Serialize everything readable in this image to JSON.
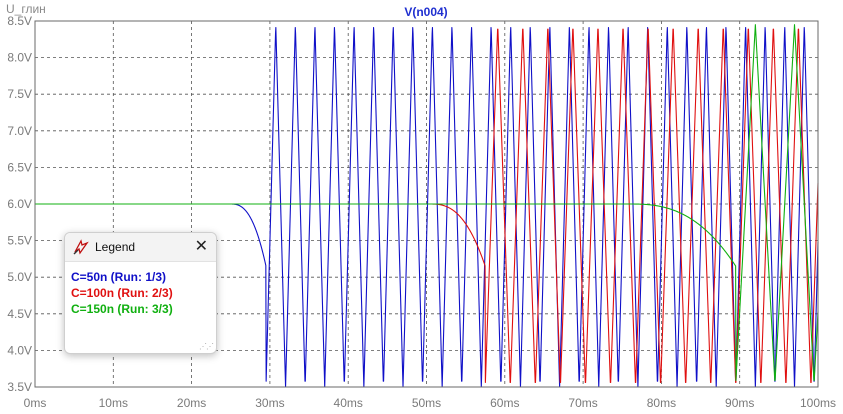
{
  "header": {
    "left_label": "U_глин",
    "title": "V(n004)"
  },
  "legend": {
    "title": "Legend",
    "entries": [
      {
        "text": "C=50n  (Run: 1/3)",
        "color": "#1010c8"
      },
      {
        "text": "C=100n  (Run: 2/3)",
        "color": "#e01010"
      },
      {
        "text": "C=150n  (Run: 3/3)",
        "color": "#10b010"
      }
    ]
  },
  "chart_data": {
    "type": "line",
    "title": "V(n004)",
    "xlabel": "",
    "ylabel": "",
    "xlim": [
      0,
      100
    ],
    "ylim": [
      3.5,
      8.5
    ],
    "x_unit": "ms",
    "y_unit": "V",
    "x_ticks": [
      "0ms",
      "10ms",
      "20ms",
      "30ms",
      "40ms",
      "50ms",
      "60ms",
      "70ms",
      "80ms",
      "90ms",
      "100ms"
    ],
    "y_ticks": [
      "3.5V",
      "4.0V",
      "4.5V",
      "5.0V",
      "5.5V",
      "6.0V",
      "6.5V",
      "7.0V",
      "7.5V",
      "8.0V",
      "8.5V"
    ],
    "grid": true,
    "series": [
      {
        "name": "C=50n",
        "color": "#1010c8",
        "steady_value": 6.0,
        "dip_start": 25.0,
        "dip_end": 29.5,
        "dip_min": 5.15,
        "osc_start": 29.5,
        "period": 2.5,
        "osc_min": 3.5,
        "osc_max": 8.45
      },
      {
        "name": "C=100n",
        "color": "#e01010",
        "steady_value": 6.0,
        "dip_start": 50.5,
        "dip_end": 57.5,
        "dip_min": 5.15,
        "osc_start": 57.5,
        "period": 3.2,
        "osc_min": 3.5,
        "osc_max": 8.45
      },
      {
        "name": "C=150n",
        "color": "#10b010",
        "steady_value": 6.0,
        "dip_start": 76.0,
        "dip_end": 89.5,
        "dip_min": 5.15,
        "osc_start": 89.5,
        "period": 5.0,
        "osc_min": 3.55,
        "osc_max": 8.45
      }
    ]
  }
}
